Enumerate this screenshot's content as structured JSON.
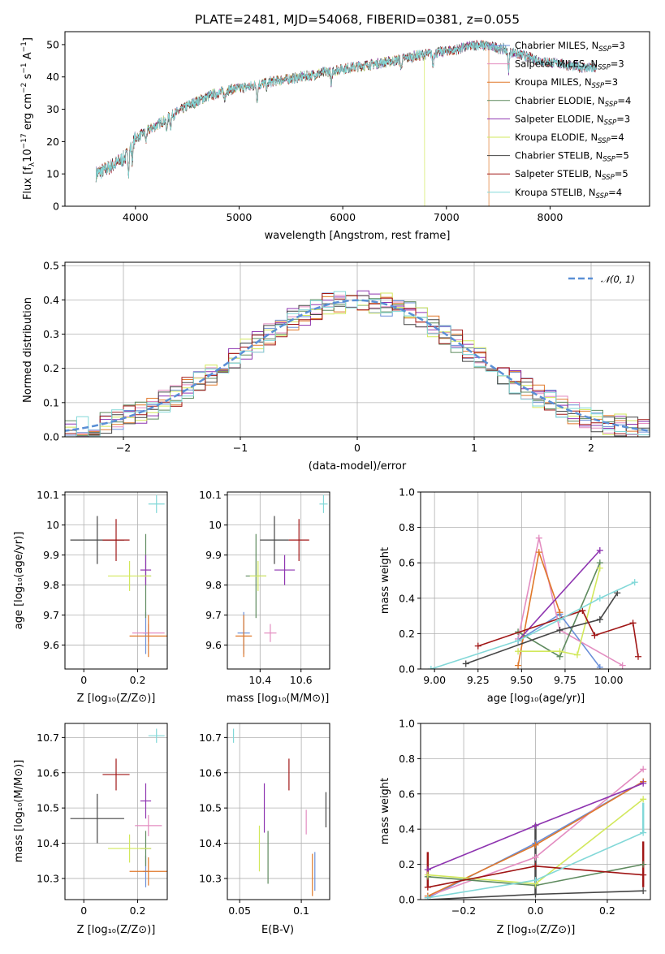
{
  "colors": {
    "Chabrier MILES": "#6a8fd8",
    "Salpeter MILES": "#e38cc0",
    "Kroupa MILES": "#e0782a",
    "Chabrier ELODIE": "#5e8a5e",
    "Salpeter ELODIE": "#8e34b0",
    "Kroupa ELODIE": "#d2e85c",
    "Chabrier STELIB": "#454545",
    "Salpeter STELIB": "#a01616",
    "Kroupa STELIB": "#82d8d8",
    "gauss": "#5a8fd6"
  },
  "legend_order": [
    "Chabrier MILES",
    "Salpeter MILES",
    "Kroupa MILES",
    "Chabrier ELODIE",
    "Salpeter ELODIE",
    "Kroupa ELODIE",
    "Chabrier STELIB",
    "Salpeter STELIB",
    "Kroupa STELIB"
  ],
  "chart_data": [
    {
      "id": "spectrum",
      "type": "line",
      "title": "PLATE=2481, MJD=54068, FIBERID=0381, z=0.055",
      "xlabel": "wavelength [Angstrom, rest frame]",
      "ylabel": "Flux [f",
      "ylabel_parts": [
        "Flux [f",
        "λ",
        "10",
        "−17",
        " erg cm",
        "−2",
        " s",
        "−1",
        " A",
        "−1",
        "]"
      ],
      "xlim": [
        3320,
        8960
      ],
      "ylim": [
        0,
        54
      ],
      "xticks": [
        4000,
        5000,
        6000,
        7000,
        8000
      ],
      "yticks": [
        0,
        10,
        20,
        30,
        40,
        50
      ],
      "legend_position": "top-right",
      "legend": [
        {
          "name": "Chabrier MILES",
          "nssp": "3"
        },
        {
          "name": "Salpeter MILES",
          "nssp": "3"
        },
        {
          "name": "Kroupa MILES",
          "nssp": "3"
        },
        {
          "name": "Chabrier ELODIE",
          "nssp": "4"
        },
        {
          "name": "Salpeter ELODIE",
          "nssp": "3"
        },
        {
          "name": "Kroupa ELODIE",
          "nssp": "4"
        },
        {
          "name": "Chabrier STELIB",
          "nssp": "5"
        },
        {
          "name": "Salpeter STELIB",
          "nssp": "5"
        },
        {
          "name": "Kroupa STELIB",
          "nssp": "4"
        }
      ],
      "nssp_label": "N",
      "nssp_sub": "SSP",
      "continuum": [
        [
          3620,
          10
        ],
        [
          3750,
          12
        ],
        [
          3900,
          15
        ],
        [
          4000,
          21
        ],
        [
          4100,
          23
        ],
        [
          4200,
          25
        ],
        [
          4300,
          27
        ],
        [
          4500,
          31
        ],
        [
          4700,
          34
        ],
        [
          4900,
          36
        ],
        [
          5100,
          37
        ],
        [
          5300,
          38.5
        ],
        [
          5500,
          39.5
        ],
        [
          5700,
          40.5
        ],
        [
          5900,
          42
        ],
        [
          6100,
          43
        ],
        [
          6300,
          44
        ],
        [
          6500,
          45
        ],
        [
          6700,
          46.5
        ],
        [
          6900,
          47.5
        ],
        [
          7100,
          48.5
        ],
        [
          7300,
          50
        ],
        [
          7500,
          49
        ],
        [
          7700,
          47
        ],
        [
          7900,
          45
        ],
        [
          8100,
          44
        ],
        [
          8300,
          43
        ],
        [
          8450,
          42.5
        ]
      ],
      "absorption": [
        [
          3934,
          6
        ],
        [
          3969,
          5
        ],
        [
          4101,
          3
        ],
        [
          4300,
          4
        ],
        [
          4340,
          3
        ],
        [
          4861,
          3
        ],
        [
          5175,
          5
        ],
        [
          5270,
          2
        ],
        [
          5890,
          5
        ],
        [
          6563,
          3
        ],
        [
          6870,
          4
        ],
        [
          7600,
          6
        ]
      ],
      "model_cutoffs": {
        "Kroupa MILES": 7410,
        "Kroupa ELODIE": 6790
      }
    },
    {
      "id": "residuals",
      "type": "line",
      "xlabel": "(data-model)/error",
      "ylabel": "Normed distribution",
      "xlim": [
        -2.5,
        2.5
      ],
      "ylim": [
        0,
        0.51
      ],
      "xticks": [
        -2,
        -1,
        0,
        1,
        2
      ],
      "xtick_labels": [
        "−2",
        "−1",
        "0",
        "1",
        "2"
      ],
      "yticks": [
        0.0,
        0.1,
        0.2,
        0.3,
        0.4,
        0.5
      ],
      "ytick_labels": [
        "0.0",
        "0.1",
        "0.2",
        "0.3",
        "0.4",
        "0.5"
      ],
      "grid": true,
      "legend_position": "top-right",
      "gauss_label": "𝒩(0, 1)",
      "bin_width": 0.1
    },
    {
      "id": "age-vs-Z",
      "type": "scatter",
      "xlabel": "Z [log₁₀(Z/Z⊙)]",
      "ylabel": "age  [log₁₀(age/yr)]",
      "xlim": [
        -0.07,
        0.31
      ],
      "ylim": [
        9.52,
        10.11
      ],
      "xticks": [
        0.0,
        0.2
      ],
      "yticks": [
        9.6,
        9.7,
        9.8,
        9.9,
        10.0,
        10.1
      ],
      "grid": true,
      "points": [
        {
          "model": "Chabrier MILES",
          "x": 0.23,
          "y": 9.64,
          "xerr": 0.01,
          "yerr": 0.07
        },
        {
          "model": "Salpeter MILES",
          "x": 0.24,
          "y": 9.64,
          "xerr": 0.06,
          "yerr": 0.03
        },
        {
          "model": "Kroupa MILES",
          "x": 0.24,
          "y": 9.63,
          "xerr": 0.07,
          "yerr": 0.07
        },
        {
          "model": "Chabrier ELODIE",
          "x": 0.23,
          "y": 9.83,
          "xerr": 0.02,
          "yerr": 0.14
        },
        {
          "model": "Salpeter ELODIE",
          "x": 0.23,
          "y": 9.85,
          "xerr": 0.02,
          "yerr": 0.05
        },
        {
          "model": "Kroupa ELODIE",
          "x": 0.17,
          "y": 9.83,
          "xerr": 0.08,
          "yerr": 0.05
        },
        {
          "model": "Chabrier STELIB",
          "x": 0.05,
          "y": 9.95,
          "xerr": 0.1,
          "yerr": 0.08
        },
        {
          "model": "Salpeter STELIB",
          "x": 0.12,
          "y": 9.95,
          "xerr": 0.05,
          "yerr": 0.07
        },
        {
          "model": "Kroupa STELIB",
          "x": 0.27,
          "y": 10.07,
          "xerr": 0.03,
          "yerr": 0.03
        }
      ]
    },
    {
      "id": "age-vs-mass",
      "type": "scatter",
      "xlabel": "mass [log₁₀(M/M⊙)]",
      "ylabel": "",
      "xlim": [
        10.24,
        10.74
      ],
      "ylim": [
        9.52,
        10.11
      ],
      "xticks": [
        10.4,
        10.6
      ],
      "yticks": [
        9.6,
        9.7,
        9.8,
        9.9,
        10.0,
        10.1
      ],
      "grid": true,
      "points": [
        {
          "model": "Chabrier MILES",
          "x": 10.32,
          "y": 9.64,
          "xerr": 0.03,
          "yerr": 0.07
        },
        {
          "model": "Salpeter MILES",
          "x": 10.45,
          "y": 9.64,
          "xerr": 0.03,
          "yerr": 0.03
        },
        {
          "model": "Kroupa MILES",
          "x": 10.32,
          "y": 9.63,
          "xerr": 0.04,
          "yerr": 0.07
        },
        {
          "model": "Chabrier ELODIE",
          "x": 10.38,
          "y": 9.83,
          "xerr": 0.05,
          "yerr": 0.14
        },
        {
          "model": "Salpeter ELODIE",
          "x": 10.52,
          "y": 9.85,
          "xerr": 0.05,
          "yerr": 0.05
        },
        {
          "model": "Kroupa ELODIE",
          "x": 10.39,
          "y": 9.83,
          "xerr": 0.04,
          "yerr": 0.05
        },
        {
          "model": "Chabrier STELIB",
          "x": 10.47,
          "y": 9.95,
          "xerr": 0.07,
          "yerr": 0.08
        },
        {
          "model": "Salpeter STELIB",
          "x": 10.59,
          "y": 9.95,
          "xerr": 0.05,
          "yerr": 0.07
        },
        {
          "model": "Kroupa STELIB",
          "x": 10.71,
          "y": 10.07,
          "xerr": 0.02,
          "yerr": 0.03
        }
      ]
    },
    {
      "id": "sfh-age",
      "type": "line",
      "xlabel": "age  [log₁₀(age/yr)]",
      "ylabel": "mass weight",
      "xlim": [
        8.92,
        10.24
      ],
      "ylim": [
        0,
        1
      ],
      "xticks": [
        9.0,
        9.25,
        9.5,
        9.75,
        10.0
      ],
      "xtick_labels": [
        "9.00",
        "9.25",
        "9.50",
        "9.75",
        "10.00"
      ],
      "yticks": [
        0,
        0.2,
        0.4,
        0.6,
        0.8,
        1.0
      ],
      "ytick_labels": [
        "0.0",
        "0.2",
        "0.4",
        "0.6",
        "0.8",
        "1.0"
      ],
      "grid": true,
      "series": [
        {
          "model": "Chabrier MILES",
          "x": [
            9.48,
            9.72,
            9.95
          ],
          "y": [
            0.16,
            0.31,
            0.01
          ]
        },
        {
          "model": "Salpeter MILES",
          "x": [
            9.48,
            9.6,
            9.72,
            10.08
          ],
          "y": [
            0.17,
            0.74,
            0.22,
            0.02
          ]
        },
        {
          "model": "Kroupa MILES",
          "x": [
            9.48,
            9.6,
            9.72
          ],
          "y": [
            0.02,
            0.66,
            0.32
          ]
        },
        {
          "model": "Chabrier ELODIE",
          "x": [
            9.48,
            9.72,
            9.95
          ],
          "y": [
            0.21,
            0.07,
            0.6
          ]
        },
        {
          "model": "Salpeter ELODIE",
          "x": [
            9.48,
            9.95
          ],
          "y": [
            0.16,
            0.67
          ]
        },
        {
          "model": "Kroupa ELODIE",
          "x": [
            9.48,
            9.72,
            9.82,
            9.95
          ],
          "y": [
            0.1,
            0.1,
            0.08,
            0.57
          ]
        },
        {
          "model": "Chabrier STELIB",
          "x": [
            9.18,
            9.72,
            9.95,
            10.05
          ],
          "y": [
            0.03,
            0.22,
            0.28,
            0.43
          ]
        },
        {
          "model": "Salpeter STELIB",
          "x": [
            9.25,
            9.85,
            9.92,
            10.14,
            10.17
          ],
          "y": [
            0.13,
            0.33,
            0.19,
            0.26,
            0.07
          ]
        },
        {
          "model": "Kroupa STELIB",
          "x": [
            8.98,
            9.48,
            9.72,
            9.95,
            10.15
          ],
          "y": [
            0.0,
            0.16,
            0.28,
            0.4,
            0.49
          ]
        }
      ]
    },
    {
      "id": "mass-vs-Z",
      "type": "scatter",
      "xlabel": "Z [log₁₀(Z/Z⊙)]",
      "ylabel": "mass [log₁₀(M/M⊙)]",
      "xlim": [
        -0.07,
        0.31
      ],
      "ylim": [
        10.24,
        10.74
      ],
      "xticks": [
        0.0,
        0.2
      ],
      "yticks": [
        10.3,
        10.4,
        10.5,
        10.6,
        10.7
      ],
      "grid": true,
      "points": [
        {
          "model": "Chabrier MILES",
          "x": 0.23,
          "y": 10.32,
          "xerr": 0.01,
          "yerr": 0.045
        },
        {
          "model": "Salpeter MILES",
          "x": 0.24,
          "y": 10.45,
          "xerr": 0.05,
          "yerr": 0.03
        },
        {
          "model": "Kroupa MILES",
          "x": 0.24,
          "y": 10.32,
          "xerr": 0.07,
          "yerr": 0.04
        },
        {
          "model": "Chabrier ELODIE",
          "x": 0.23,
          "y": 10.385,
          "xerr": 0.02,
          "yerr": 0.05
        },
        {
          "model": "Salpeter ELODIE",
          "x": 0.23,
          "y": 10.52,
          "xerr": 0.02,
          "yerr": 0.05
        },
        {
          "model": "Kroupa ELODIE",
          "x": 0.17,
          "y": 10.385,
          "xerr": 0.08,
          "yerr": 0.04
        },
        {
          "model": "Chabrier STELIB",
          "x": 0.05,
          "y": 10.47,
          "xerr": 0.1,
          "yerr": 0.07
        },
        {
          "model": "Salpeter STELIB",
          "x": 0.12,
          "y": 10.595,
          "xerr": 0.05,
          "yerr": 0.045
        },
        {
          "model": "Kroupa STELIB",
          "x": 0.27,
          "y": 10.705,
          "xerr": 0.03,
          "yerr": 0.02
        }
      ]
    },
    {
      "id": "mass-vs-ebv",
      "type": "scatter",
      "xlabel": "E(B-V)",
      "ylabel": "",
      "xlim": [
        0.04,
        0.123
      ],
      "ylim": [
        10.24,
        10.74
      ],
      "xticks": [
        0.05,
        0.1
      ],
      "yticks": [
        10.3,
        10.4,
        10.5,
        10.6,
        10.7
      ],
      "grid": true,
      "points": [
        {
          "model": "Chabrier MILES",
          "x": 0.111,
          "y": 10.32,
          "yerr": 0.055
        },
        {
          "model": "Salpeter MILES",
          "x": 0.104,
          "y": 10.46,
          "yerr": 0.035
        },
        {
          "model": "Kroupa MILES",
          "x": 0.109,
          "y": 10.31,
          "yerr": 0.06
        },
        {
          "model": "Chabrier ELODIE",
          "x": 0.073,
          "y": 10.36,
          "yerr": 0.075
        },
        {
          "model": "Salpeter ELODIE",
          "x": 0.07,
          "y": 10.5,
          "yerr": 0.07
        },
        {
          "model": "Kroupa ELODIE",
          "x": 0.066,
          "y": 10.385,
          "yerr": 0.065
        },
        {
          "model": "Chabrier STELIB",
          "x": 0.12,
          "y": 10.495,
          "yerr": 0.05
        },
        {
          "model": "Salpeter STELIB",
          "x": 0.09,
          "y": 10.595,
          "yerr": 0.045
        },
        {
          "model": "Kroupa STELIB",
          "x": 0.045,
          "y": 10.705,
          "yerr": 0.02
        }
      ]
    },
    {
      "id": "sfh-Z",
      "type": "line",
      "xlabel": "Z [log₁₀(Z/Z⊙)]",
      "ylabel": "mass weight",
      "xlim": [
        -0.32,
        0.32
      ],
      "ylim": [
        0,
        1
      ],
      "xticks": [
        -0.2,
        0.0,
        0.2
      ],
      "xtick_labels": [
        "−0.2",
        "0.0",
        "0.2"
      ],
      "yticks": [
        0,
        0.2,
        0.4,
        0.6,
        0.8,
        1.0
      ],
      "ytick_labels": [
        "0.0",
        "0.2",
        "0.4",
        "0.6",
        "0.8",
        "1.0"
      ],
      "grid": true,
      "series": [
        {
          "model": "Chabrier MILES",
          "x": [
            -0.3,
            0.0,
            0.3
          ],
          "y": [
            0.01,
            0.32,
            0.67
          ]
        },
        {
          "model": "Salpeter MILES",
          "x": [
            -0.3,
            0.0,
            0.3
          ],
          "y": [
            0.02,
            0.24,
            0.74
          ]
        },
        {
          "model": "Kroupa MILES",
          "x": [
            -0.3,
            0.0,
            0.3
          ],
          "y": [
            0.02,
            0.31,
            0.67
          ]
        },
        {
          "model": "Chabrier ELODIE",
          "x": [
            -0.3,
            0.0,
            0.3
          ],
          "y": [
            0.13,
            0.08,
            0.2
          ]
        },
        {
          "model": "Salpeter ELODIE",
          "x": [
            -0.3,
            0.0,
            0.3
          ],
          "y": [
            0.17,
            0.42,
            0.66
          ]
        },
        {
          "model": "Kroupa ELODIE",
          "x": [
            -0.3,
            0.0,
            0.3
          ],
          "y": [
            0.14,
            0.09,
            0.57
          ]
        },
        {
          "model": "Chabrier STELIB",
          "x": [
            -0.3,
            0.0,
            0.3
          ],
          "y": [
            0.0,
            0.03,
            0.05
          ]
        },
        {
          "model": "Salpeter STELIB",
          "x": [
            -0.3,
            0.0,
            0.3
          ],
          "y": [
            0.07,
            0.19,
            0.14
          ]
        },
        {
          "model": "Kroupa STELIB",
          "x": [
            -0.3,
            0.0,
            0.3
          ],
          "y": [
            0.01,
            0.11,
            0.38
          ]
        }
      ],
      "vertical_spreads": [
        {
          "model": "Chabrier STELIB",
          "x": 0.0,
          "y": [
            0.03,
            0.43
          ]
        },
        {
          "model": "Salpeter STELIB",
          "x": -0.3,
          "y": [
            0.07,
            0.27
          ]
        },
        {
          "model": "Salpeter STELIB",
          "x": 0.3,
          "y": [
            0.07,
            0.33
          ]
        },
        {
          "model": "Kroupa STELIB",
          "x": 0.3,
          "y": [
            0.38,
            0.55
          ]
        }
      ]
    }
  ]
}
